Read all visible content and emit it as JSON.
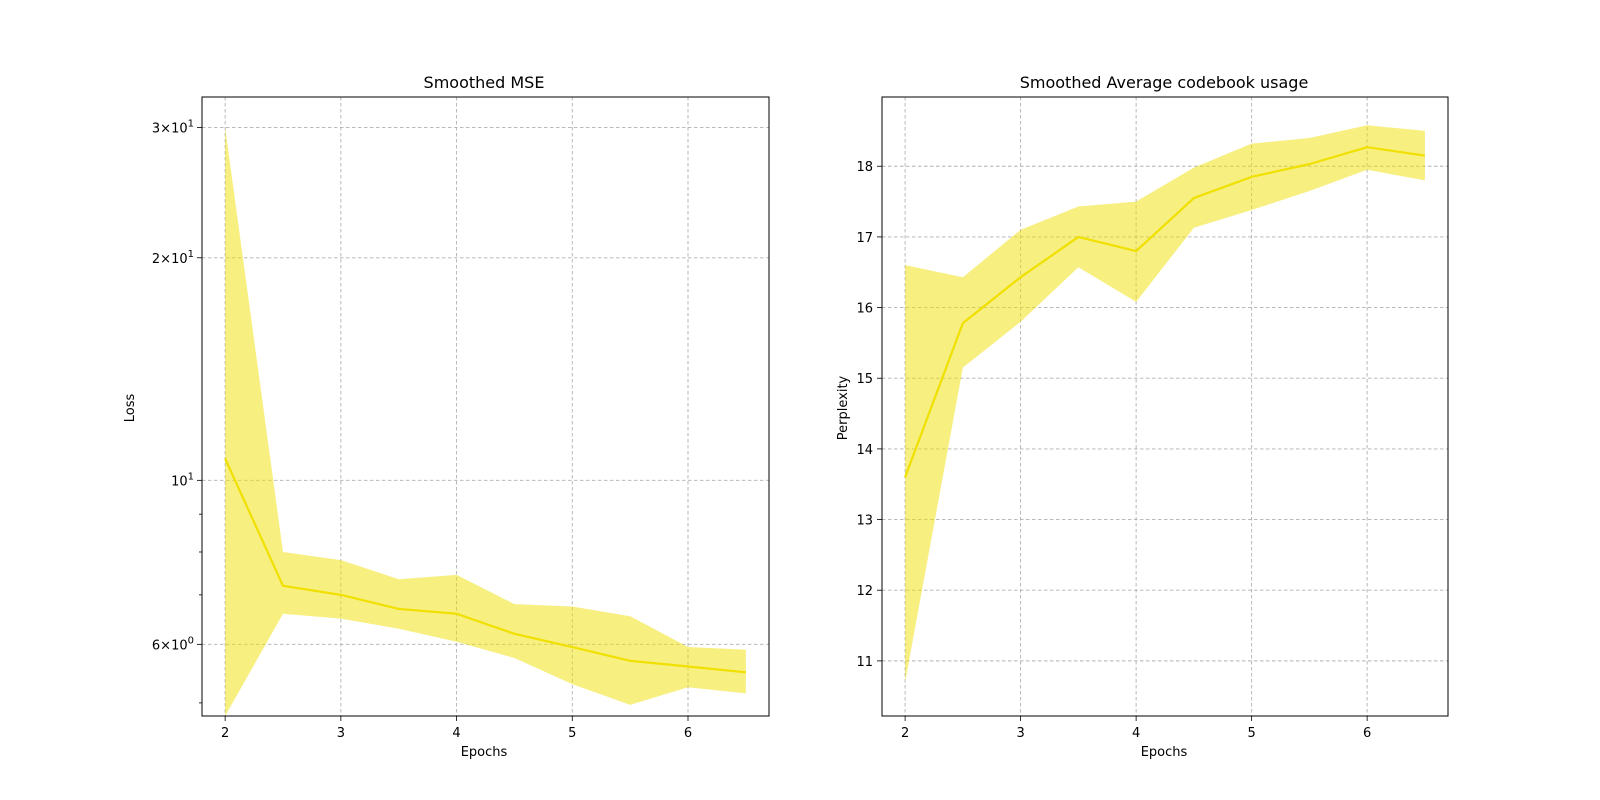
{
  "colors": {
    "line": "#f0e000",
    "band": "#f0e000",
    "band_opacity": 0.5,
    "grid": "#b0b0b0"
  },
  "chart_data": [
    {
      "type": "line",
      "title": "Smoothed MSE",
      "xlabel": "Epochs",
      "ylabel": "Loss",
      "yscale": "log",
      "grid": true,
      "xlim": [
        1.8,
        6.7
      ],
      "ylim": [
        4.8,
        33.0
      ],
      "xticks": [
        2,
        3,
        4,
        5,
        6
      ],
      "xtick_labels": [
        "2",
        "3",
        "4",
        "5",
        "6"
      ],
      "yticks_major": [
        {
          "value": 6,
          "base": "6",
          "sign": "×",
          "power": "10",
          "exp": "0"
        },
        {
          "value": 10,
          "base": "",
          "sign": "",
          "power": "10",
          "exp": "1"
        },
        {
          "value": 20,
          "base": "2",
          "sign": "×",
          "power": "10",
          "exp": "1"
        },
        {
          "value": 30,
          "base": "3",
          "sign": "×",
          "power": "10",
          "exp": "1"
        }
      ],
      "yticks_minor": [
        5,
        7,
        8,
        9
      ],
      "series": [
        {
          "x": [
            2,
            2.5,
            3,
            3.5,
            4,
            4.5,
            5,
            5.5,
            6,
            6.5
          ],
          "y": [
            10.7,
            7.2,
            7.0,
            6.7,
            6.6,
            6.2,
            5.95,
            5.7,
            5.6,
            5.5
          ],
          "lower": [
            4.8,
            6.6,
            6.5,
            6.3,
            6.05,
            5.75,
            5.3,
            4.97,
            5.25,
            5.15
          ],
          "upper": [
            30.0,
            8.0,
            7.8,
            7.35,
            7.45,
            6.8,
            6.75,
            6.55,
            5.95,
            5.9
          ]
        }
      ]
    },
    {
      "type": "line",
      "title": "Smoothed Average codebook usage",
      "xlabel": "Epochs",
      "ylabel": "Perplexity",
      "yscale": "linear",
      "grid": true,
      "xlim": [
        1.8,
        6.7
      ],
      "ylim": [
        10.22,
        18.98
      ],
      "xticks": [
        2,
        3,
        4,
        5,
        6
      ],
      "xtick_labels": [
        "2",
        "3",
        "4",
        "5",
        "6"
      ],
      "yticks": [
        11,
        12,
        13,
        14,
        15,
        16,
        17,
        18
      ],
      "ytick_labels": [
        "11",
        "12",
        "13",
        "14",
        "15",
        "16",
        "17",
        "18"
      ],
      "series": [
        {
          "x": [
            2,
            2.5,
            3,
            3.5,
            4,
            4.5,
            5,
            5.5,
            6,
            6.5
          ],
          "y": [
            13.6,
            15.78,
            16.43,
            17.0,
            16.8,
            17.55,
            17.85,
            18.03,
            18.27,
            18.15
          ],
          "lower": [
            10.7,
            15.15,
            15.8,
            16.57,
            16.08,
            17.13,
            17.38,
            17.65,
            17.95,
            17.8
          ],
          "upper": [
            16.6,
            16.43,
            17.1,
            17.43,
            17.5,
            17.98,
            18.32,
            18.4,
            18.58,
            18.5
          ]
        }
      ]
    }
  ]
}
